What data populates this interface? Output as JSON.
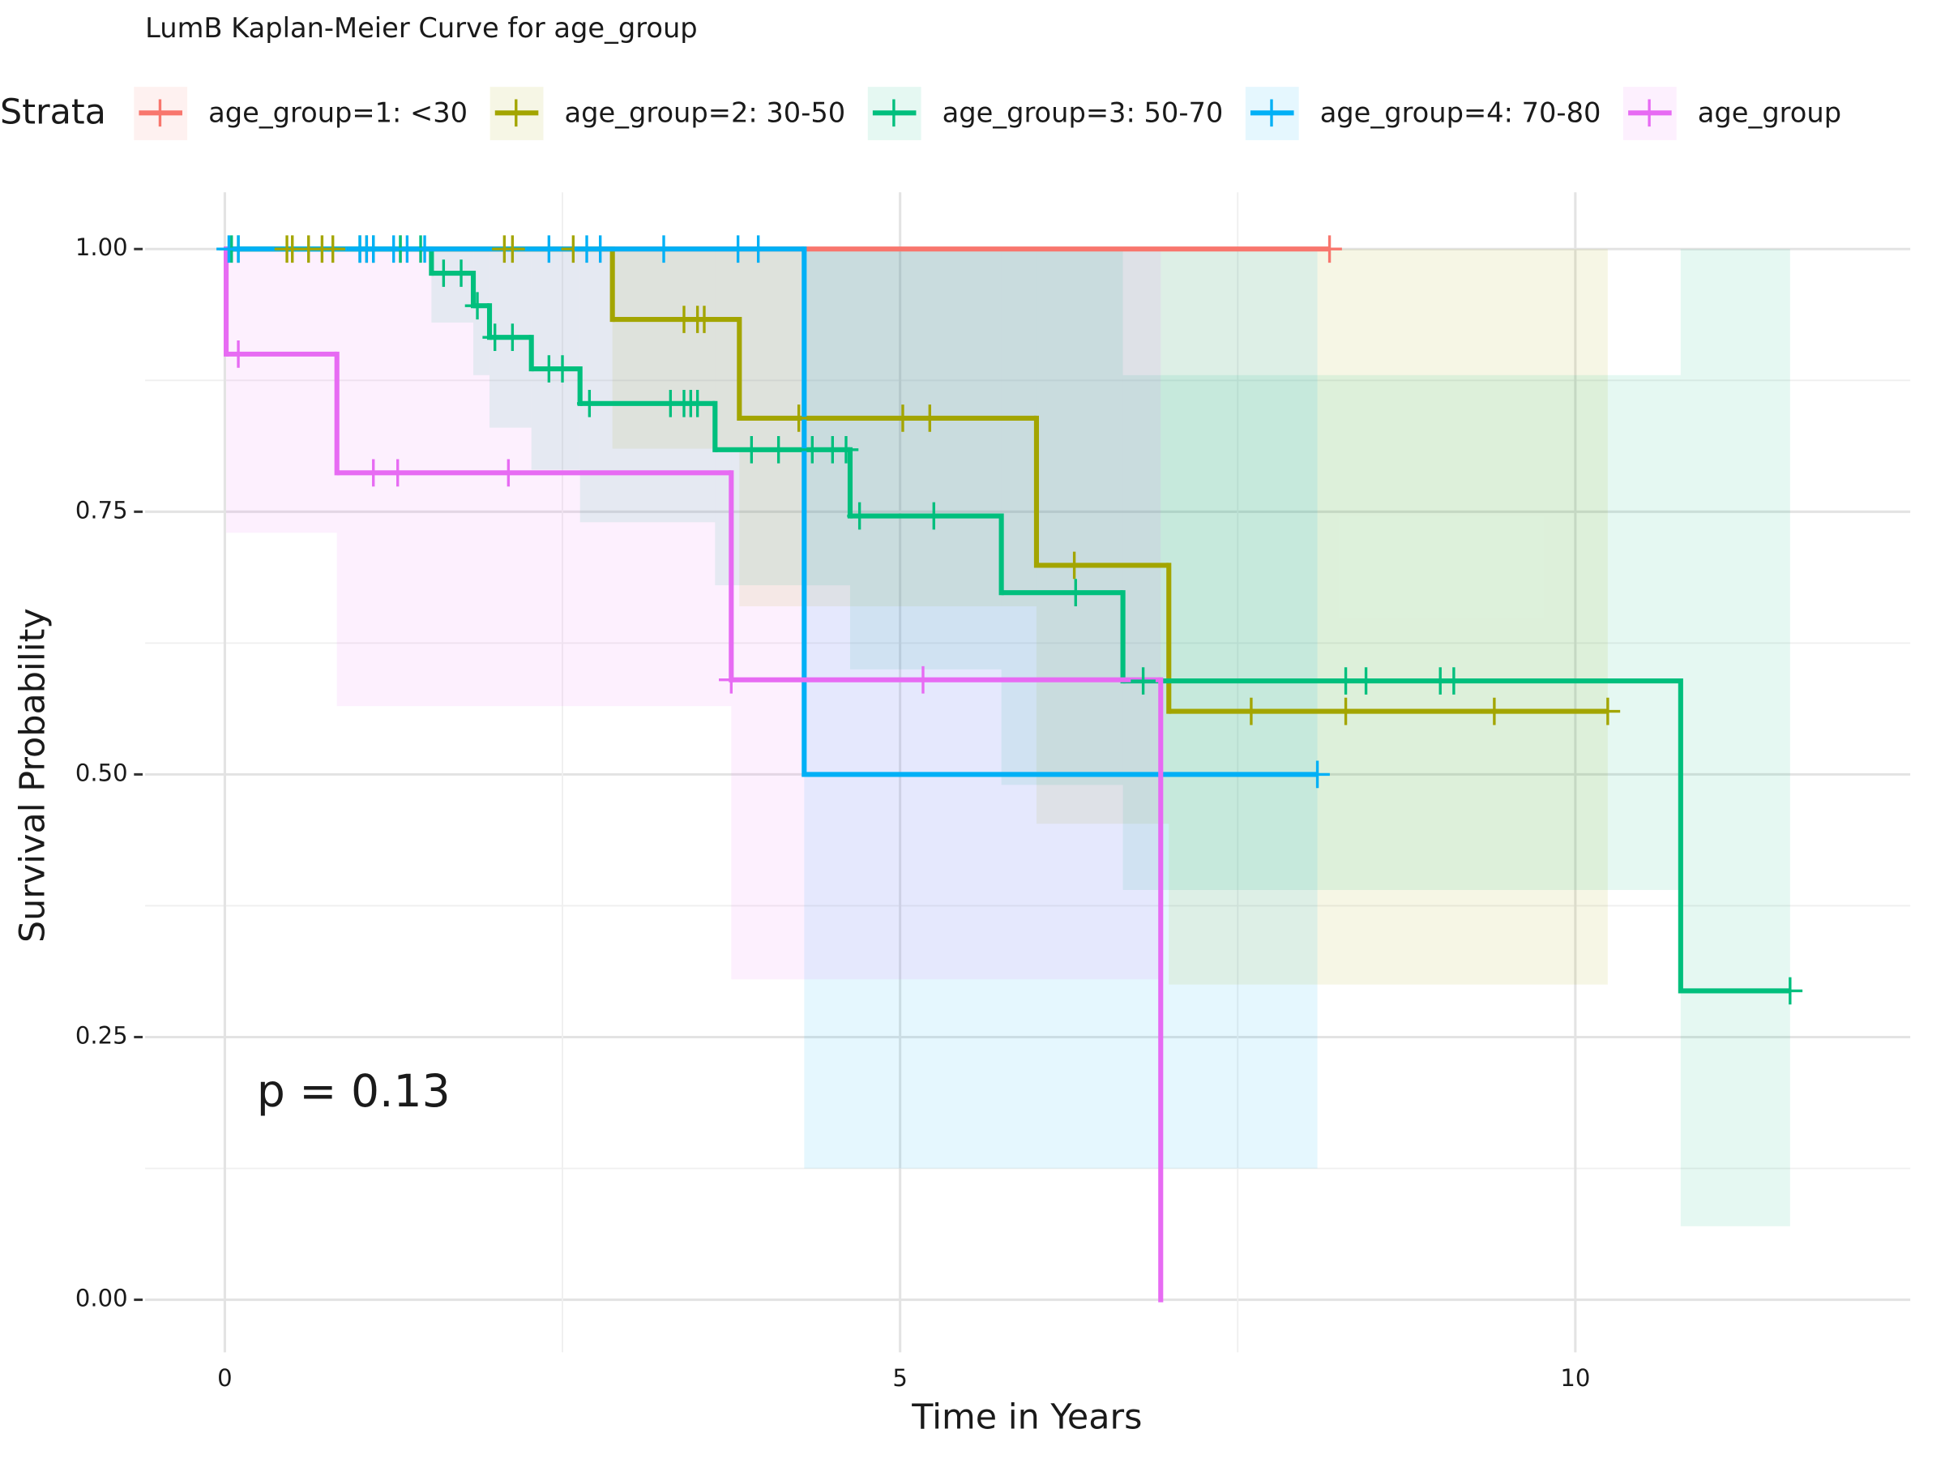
{
  "chart_data": {
    "type": "km",
    "title": "LumB Kaplan-Meier Curve for age_group",
    "legend_title": "Strata",
    "xlabel": "Time in Years",
    "ylabel": "Survival Probability",
    "annotation": "p = 0.13",
    "xlim": [
      -0.59,
      12.48
    ],
    "ylim": [
      -0.05,
      1.054
    ],
    "xticks": [
      0,
      5,
      10
    ],
    "yticks": [
      {
        "value": 0,
        "label": "0.00"
      },
      {
        "value": 0.25,
        "label": "0.25"
      },
      {
        "value": 0.5,
        "label": "0.50"
      },
      {
        "value": 0.75,
        "label": "0.75"
      },
      {
        "value": 1,
        "label": "1.00"
      }
    ],
    "grid": true,
    "legend": "top",
    "series": [
      {
        "name": "age_group=1: <30",
        "color": "#F8766D",
        "x": [
          0
        ],
        "values": [
          1
        ],
        "end": 8.18,
        "censor": [
          8.18
        ]
      },
      {
        "name": "age_group=2: 30-50",
        "color": "#A3A500",
        "x": [
          0,
          2.87,
          3.81,
          6.01,
          6.99
        ],
        "values": [
          1,
          0.933,
          0.839,
          0.699,
          0.56
        ],
        "end": 10.24,
        "ci_lower": [
          null,
          0.81,
          0.66,
          0.453,
          0.3
        ],
        "ci_upper": [
          null,
          1,
          1,
          1,
          1
        ],
        "censor": [
          0.46,
          0.5,
          0.62,
          0.72,
          0.8,
          1.05,
          1.3,
          2.07,
          2.13,
          2.58,
          3.4,
          3.5,
          3.55,
          4.25,
          5.02,
          5.22,
          6.29,
          7.6,
          8.3,
          9.4,
          10.24
        ]
      },
      {
        "name": "age_group=3: 50-70",
        "color": "#00BF7D",
        "x": [
          0,
          1.53,
          1.84,
          1.96,
          2.27,
          2.63,
          3.63,
          4.63,
          5.75,
          6.65,
          10.78
        ],
        "values": [
          1,
          0.977,
          0.946,
          0.916,
          0.886,
          0.853,
          0.809,
          0.746,
          0.673,
          0.589,
          0.294
        ],
        "end": 11.59,
        "ci_lower": [
          null,
          0.93,
          0.88,
          0.83,
          0.79,
          0.74,
          0.68,
          0.6,
          0.49,
          0.39,
          0.07
        ],
        "ci_upper": [
          null,
          1,
          1,
          1,
          1,
          1,
          1,
          1,
          1,
          0.88,
          1
        ],
        "censor": [
          0.05,
          0.1,
          1.0,
          1.1,
          1.3,
          1.45,
          1.62,
          1.75,
          1.87,
          2.0,
          2.13,
          2.4,
          2.5,
          2.7,
          3.3,
          3.4,
          3.45,
          3.5,
          3.9,
          4.1,
          4.35,
          4.5,
          4.6,
          4.7,
          5.25,
          6.3,
          6.8,
          8.3,
          8.45,
          9.0,
          9.1,
          11.59
        ]
      },
      {
        "name": "age_group=4: 70-80",
        "color": "#00B0F6",
        "x": [
          0,
          4.29
        ],
        "values": [
          1,
          0.5
        ],
        "end": 8.09,
        "ci_lower": [
          null,
          0.125
        ],
        "ci_upper": [
          null,
          1
        ],
        "censor": [
          0.03,
          0.1,
          1.0,
          1.05,
          1.1,
          1.25,
          1.35,
          1.48,
          2.4,
          2.68,
          2.78,
          3.25,
          3.8,
          3.95,
          8.09
        ]
      },
      {
        "name": "age_group",
        "color": "#E76BF3",
        "x": [
          0,
          0.01,
          0.83,
          3.75,
          6.93
        ],
        "values": [
          1,
          0.9,
          0.787,
          0.59,
          0
        ],
        "end": 6.93,
        "ci_lower": [
          null,
          0.73,
          0.565,
          0.305,
          null
        ],
        "ci_upper": [
          null,
          1,
          1,
          1,
          null
        ],
        "censor": [
          0.1,
          1.1,
          1.28,
          2.1,
          3.75,
          5.17
        ]
      }
    ]
  }
}
